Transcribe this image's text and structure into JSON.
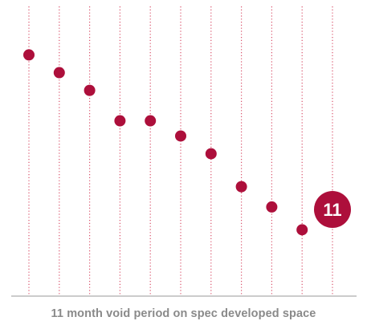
{
  "chart_data": {
    "type": "scatter",
    "title": "",
    "caption": "11 month void period on spec developed space",
    "xlabel": "",
    "ylabel": "",
    "x": [
      1,
      2,
      3,
      4,
      5,
      6,
      7,
      8,
      9,
      10,
      11
    ],
    "y": [
      11.6,
      10.9,
      10.2,
      9.0,
      9.0,
      8.4,
      7.7,
      6.4,
      5.6,
      4.7,
      5.5
    ],
    "point_labels": [
      "",
      "",
      "",
      "",
      "",
      "",
      "",
      "",
      "",
      "",
      "11"
    ],
    "highlight_index": 10,
    "ylim": [
      3,
      12.5
    ],
    "grid": "vertical dotted lines at each x",
    "colors": {
      "point": "#ad0f3b",
      "grid": "#d9506a",
      "baseline": "#9a9a9a",
      "caption": "#8a8a8a"
    }
  }
}
